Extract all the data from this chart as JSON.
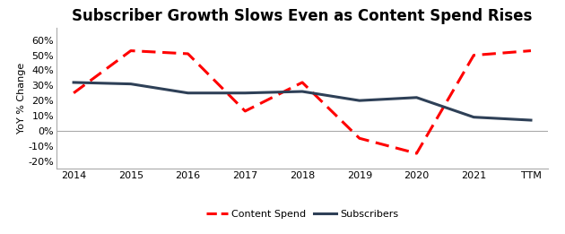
{
  "title": "Subscriber Growth Slows Even as Content Spend Rises",
  "ylabel": "YoY % Change",
  "x_labels": [
    "2014",
    "2015",
    "2016",
    "2017",
    "2018",
    "2019",
    "2020",
    "2021",
    "TTM"
  ],
  "x_values": [
    0,
    1,
    2,
    3,
    4,
    5,
    6,
    7,
    8
  ],
  "content_spend": [
    0.25,
    0.53,
    0.51,
    0.13,
    0.32,
    -0.05,
    -0.15,
    0.5,
    0.53
  ],
  "subscribers": [
    0.32,
    0.31,
    0.25,
    0.25,
    0.26,
    0.2,
    0.22,
    0.09,
    0.07
  ],
  "ylim": [
    -0.25,
    0.68
  ],
  "yticks": [
    -0.2,
    -0.1,
    0.0,
    0.1,
    0.2,
    0.3,
    0.4,
    0.5,
    0.6
  ],
  "content_spend_color": "#FF0000",
  "subscribers_color": "#2E4057",
  "legend_labels": [
    "Content Spend",
    "Subscribers"
  ],
  "bg_color": "#FFFFFF",
  "zero_line_color": "#AAAAAA",
  "spine_color": "#AAAAAA",
  "title_fontsize": 12,
  "axis_fontsize": 8,
  "tick_fontsize": 8
}
